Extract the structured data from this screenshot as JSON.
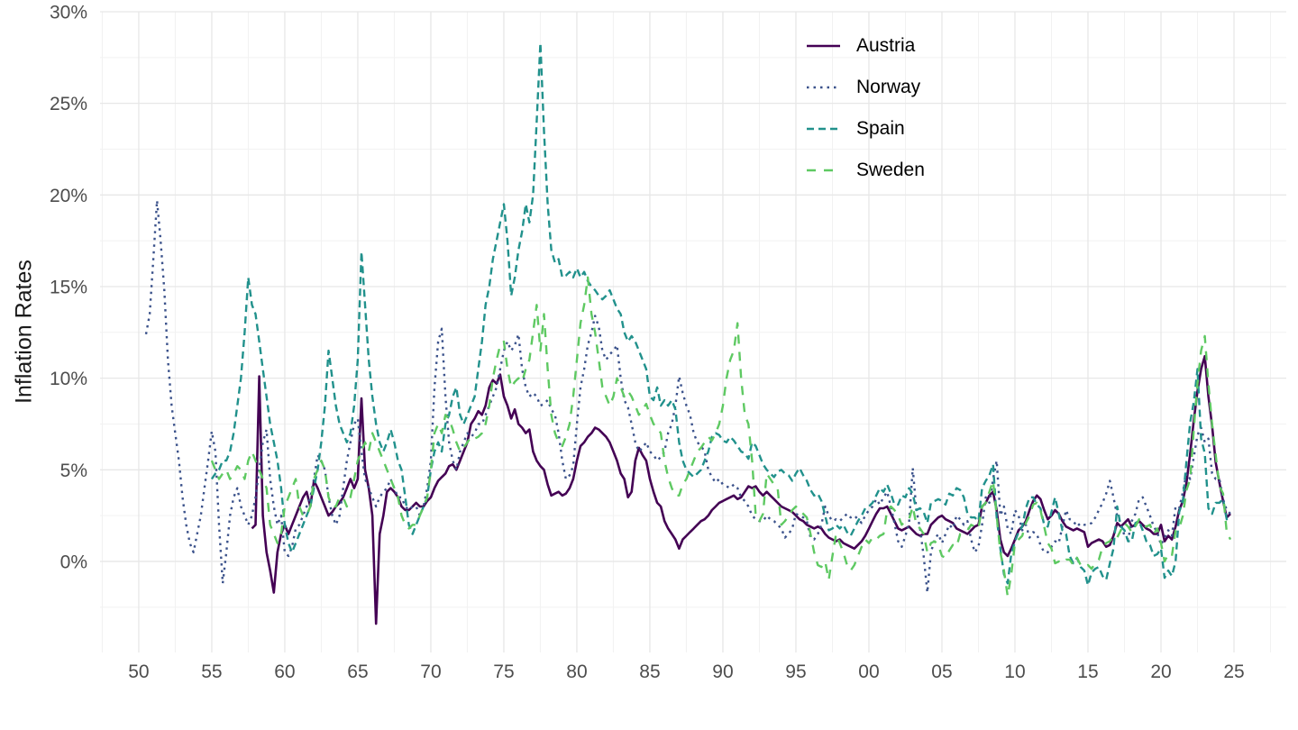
{
  "chart_data": {
    "type": "line",
    "title": "",
    "xlabel": "",
    "ylabel": "Inflation Rates",
    "x_range": [
      1947.35,
      2028.58
    ],
    "y_range": [
      -4.97,
      30.0
    ],
    "grid": "on",
    "legend_position": "inside-top-right",
    "theme": {
      "background": "#ffffff",
      "grid_major": "#e7e7e7",
      "grid_minor": "#f2f2f2",
      "tick_text": "#4d4d4d",
      "axis_title_text": "#1a1a1a"
    },
    "x_ticks": [
      {
        "year": 1950,
        "label": "50"
      },
      {
        "year": 1955,
        "label": "55"
      },
      {
        "year": 1960,
        "label": "60"
      },
      {
        "year": 1965,
        "label": "65"
      },
      {
        "year": 1970,
        "label": "70"
      },
      {
        "year": 1975,
        "label": "75"
      },
      {
        "year": 1980,
        "label": "80"
      },
      {
        "year": 1985,
        "label": "85"
      },
      {
        "year": 1990,
        "label": "90"
      },
      {
        "year": 1995,
        "label": "95"
      },
      {
        "year": 2000,
        "label": "00"
      },
      {
        "year": 2005,
        "label": "05"
      },
      {
        "year": 2010,
        "label": "10"
      },
      {
        "year": 2015,
        "label": "15"
      },
      {
        "year": 2020,
        "label": "20"
      },
      {
        "year": 2025,
        "label": "25"
      }
    ],
    "y_ticks": [
      {
        "value": 0,
        "label": "0%"
      },
      {
        "value": 5,
        "label": "5%"
      },
      {
        "value": 10,
        "label": "10%"
      },
      {
        "value": 15,
        "label": "15%"
      },
      {
        "value": 20,
        "label": "20%"
      },
      {
        "value": 25,
        "label": "25%"
      },
      {
        "value": 30,
        "label": "30%"
      }
    ],
    "series": [
      {
        "name": "Austria",
        "color": "#440154",
        "linetype": "solid",
        "start": 1957.75,
        "step": 0.25,
        "values": [
          1.8,
          2.0,
          10.1,
          2.5,
          0.5,
          -0.5,
          -1.7,
          0.5,
          1.5,
          2.0,
          1.5,
          2.0,
          2.5,
          3.0,
          3.5,
          3.8,
          3.0,
          4.4,
          4.0,
          3.5,
          3.0,
          2.5,
          2.7,
          3.0,
          3.2,
          3.5,
          4.0,
          4.5,
          4.0,
          4.5,
          8.9,
          5.0,
          4.0,
          2.5,
          -3.4,
          1.5,
          2.5,
          3.8,
          4.0,
          3.8,
          3.5,
          3.0,
          2.8,
          2.8,
          3.0,
          3.2,
          3.0,
          3.0,
          3.3,
          3.5,
          4.0,
          4.4,
          4.6,
          4.8,
          5.2,
          5.3,
          5.0,
          5.5,
          6.0,
          6.5,
          7.5,
          7.8,
          8.2,
          8.0,
          8.5,
          9.5,
          9.9,
          9.7,
          10.2,
          9.0,
          8.5,
          7.8,
          8.3,
          7.5,
          7.3,
          7.0,
          7.2,
          6.0,
          5.5,
          5.2,
          5.0,
          4.2,
          3.6,
          3.7,
          3.8,
          3.6,
          3.7,
          4.0,
          4.5,
          5.5,
          6.3,
          6.5,
          6.8,
          7.0,
          7.3,
          7.2,
          7.0,
          6.8,
          6.5,
          6.0,
          5.5,
          4.8,
          4.5,
          3.5,
          3.8,
          5.5,
          6.2,
          5.8,
          5.5,
          4.5,
          3.8,
          3.2,
          3.0,
          2.2,
          1.8,
          1.5,
          1.2,
          0.7,
          1.2,
          1.4,
          1.6,
          1.8,
          2.0,
          2.2,
          2.3,
          2.5,
          2.8,
          3.0,
          3.2,
          3.3,
          3.4,
          3.5,
          3.6,
          3.4,
          3.5,
          3.8,
          4.1,
          4.0,
          4.1,
          3.8,
          3.6,
          3.8,
          3.6,
          3.4,
          3.2,
          3.0,
          2.9,
          2.8,
          2.7,
          2.5,
          2.3,
          2.2,
          2.0,
          1.9,
          1.8,
          1.9,
          1.8,
          1.5,
          1.3,
          1.2,
          1.1,
          1.2,
          1.0,
          0.9,
          0.8,
          0.7,
          0.9,
          1.1,
          1.4,
          1.8,
          2.2,
          2.6,
          2.9,
          2.9,
          3.0,
          2.6,
          2.2,
          1.8,
          1.7,
          1.8,
          1.9,
          1.7,
          1.5,
          1.4,
          1.5,
          1.5,
          2.0,
          2.2,
          2.4,
          2.5,
          2.3,
          2.2,
          2.1,
          1.8,
          1.7,
          1.6,
          1.5,
          1.7,
          1.9,
          2.0,
          3.0,
          3.2,
          3.6,
          3.8,
          2.8,
          1.2,
          0.5,
          0.3,
          0.7,
          1.2,
          1.7,
          1.9,
          2.2,
          2.8,
          3.3,
          3.6,
          3.4,
          2.8,
          2.3,
          2.5,
          2.8,
          2.6,
          2.2,
          1.9,
          1.8,
          1.7,
          1.8,
          1.7,
          1.6,
          0.8,
          1.0,
          1.1,
          1.2,
          1.1,
          0.8,
          0.9,
          1.4,
          2.1,
          1.9,
          2.1,
          2.3,
          1.9,
          2.0,
          2.2,
          2.0,
          1.8,
          1.7,
          1.5,
          1.5,
          2.0,
          1.1,
          1.4,
          1.2,
          1.9,
          2.8,
          3.3,
          4.3,
          5.9,
          7.7,
          9.3,
          10.5,
          11.2,
          9.0,
          7.4,
          5.4,
          4.3,
          3.3,
          2.4,
          2.6
        ]
      },
      {
        "name": "Norway",
        "color": "#3b528b",
        "linetype": "dotted",
        "start": 1950.5,
        "step": 0.25,
        "values": [
          12.4,
          13.5,
          16.5,
          19.7,
          17.5,
          14.8,
          11.0,
          8.5,
          7.0,
          5.5,
          3.5,
          2.0,
          1.0,
          0.5,
          1.5,
          2.5,
          4.0,
          5.5,
          7.1,
          6.0,
          2.0,
          -1.2,
          0.5,
          2.5,
          3.5,
          4.0,
          3.0,
          2.5,
          2.0,
          2.5,
          3.5,
          5.0,
          6.5,
          7.2,
          4.5,
          3.0,
          2.0,
          2.5,
          0.5,
          0.3,
          0.8,
          1.8,
          2.0,
          2.5,
          3.0,
          3.5,
          4.5,
          5.8,
          5.5,
          5.0,
          3.5,
          2.5,
          2.0,
          2.5,
          4.0,
          5.5,
          6.5,
          7.5,
          7.8,
          6.0,
          4.5,
          4.0,
          3.5,
          3.0,
          3.5,
          3.8,
          4.0,
          4.5,
          4.0,
          3.5,
          3.5,
          3.0,
          2.8,
          3.0,
          3.0,
          2.5,
          3.0,
          4.0,
          5.5,
          9.5,
          12.0,
          12.7,
          9.0,
          6.5,
          5.5,
          5.0,
          6.0,
          6.5,
          7.0,
          6.8,
          7.0,
          7.5,
          7.5,
          8.0,
          8.5,
          9.0,
          9.5,
          10.5,
          11.5,
          12.0,
          11.5,
          11.8,
          12.4,
          10.5,
          9.5,
          9.0,
          9.2,
          9.0,
          8.5,
          8.6,
          8.8,
          8.3,
          8.0,
          7.0,
          5.5,
          4.5,
          4.7,
          5.2,
          7.5,
          9.5,
          10.5,
          11.8,
          12.5,
          13.4,
          12.8,
          11.5,
          11.0,
          11.3,
          11.5,
          11.8,
          10.0,
          8.8,
          8.4,
          7.5,
          6.5,
          6.0,
          6.2,
          6.5,
          6.0,
          5.8,
          5.5,
          5.7,
          6.0,
          7.0,
          7.5,
          8.5,
          10.1,
          9.2,
          8.5,
          8.0,
          7.0,
          6.5,
          6.3,
          6.0,
          5.0,
          4.6,
          4.3,
          4.5,
          4.2,
          4.1,
          4.0,
          4.2,
          4.0,
          3.5,
          3.3,
          3.0,
          2.5,
          2.3,
          2.2,
          2.2,
          2.5,
          2.3,
          2.2,
          2.0,
          1.8,
          1.3,
          1.5,
          1.8,
          2.6,
          2.5,
          2.4,
          2.2,
          1.3,
          1.2,
          1.5,
          2.0,
          3.0,
          2.5,
          2.2,
          2.3,
          2.2,
          2.4,
          2.6,
          2.4,
          2.5,
          2.3,
          2.1,
          2.5,
          2.8,
          3.0,
          3.4,
          3.1,
          3.5,
          3.8,
          3.0,
          2.1,
          1.1,
          0.8,
          1.4,
          2.1,
          5.1,
          2.8,
          1.8,
          0.3,
          -1.7,
          0.5,
          1.2,
          1.5,
          1.0,
          1.5,
          2.0,
          1.8,
          2.5,
          2.3,
          2.0,
          2.2,
          1.2,
          0.5,
          0.8,
          2.0,
          3.5,
          3.2,
          4.5,
          5.5,
          2.5,
          3.0,
          1.8,
          1.5,
          2.8,
          2.5,
          1.7,
          2.0,
          1.3,
          1.6,
          1.5,
          0.9,
          0.5,
          0.5,
          0.8,
          1.1,
          1.0,
          1.9,
          2.8,
          2.3,
          2.2,
          1.9,
          2.1,
          2.0,
          2.0,
          2.1,
          2.4,
          2.8,
          3.2,
          3.7,
          4.4,
          3.5,
          2.5,
          2.1,
          1.4,
          1.2,
          2.2,
          2.6,
          3.4,
          3.5,
          3.0,
          2.5,
          1.9,
          1.6,
          0.9,
          1.3,
          1.7,
          1.4,
          3.0,
          2.9,
          3.8,
          4.8,
          4.5,
          5.7,
          6.9,
          7.3,
          6.5,
          6.7,
          4.8,
          4.5,
          4.5,
          3.4,
          2.8,
          2.6
        ]
      },
      {
        "name": "Spain",
        "color": "#21918c",
        "linetype": "dashed",
        "start": 1955.0,
        "step": 0.25,
        "values": [
          4.5,
          4.8,
          5.0,
          5.5,
          5.5,
          6.0,
          7.0,
          8.5,
          10.0,
          12.5,
          15.5,
          14.0,
          13.5,
          12.0,
          10.5,
          9.0,
          7.5,
          6.5,
          5.5,
          4.0,
          2.0,
          1.0,
          0.5,
          1.0,
          1.5,
          2.0,
          2.5,
          3.0,
          4.0,
          5.0,
          6.5,
          8.5,
          11.5,
          10.0,
          8.5,
          7.5,
          7.0,
          6.5,
          7.0,
          8.5,
          11.0,
          16.9,
          14.0,
          11.0,
          9.0,
          7.5,
          6.5,
          6.0,
          6.5,
          7.2,
          6.5,
          5.5,
          5.0,
          3.5,
          2.0,
          1.5,
          2.0,
          2.5,
          3.0,
          3.5,
          5.0,
          6.0,
          6.5,
          6.0,
          7.5,
          8.0,
          9.0,
          9.5,
          8.0,
          7.5,
          8.0,
          8.5,
          9.0,
          10.5,
          12.0,
          14.0,
          15.0,
          16.5,
          17.5,
          18.5,
          19.5,
          17.5,
          14.5,
          15.5,
          17.0,
          18.0,
          19.5,
          18.5,
          20.0,
          24.0,
          28.3,
          23.5,
          19.5,
          17.0,
          16.3,
          16.5,
          15.5,
          15.6,
          15.8,
          15.5,
          16.0,
          15.5,
          15.8,
          15.3,
          15.0,
          14.8,
          14.5,
          14.3,
          14.5,
          14.8,
          14.3,
          13.8,
          13.5,
          12.5,
          12.0,
          12.3,
          12.0,
          11.5,
          11.0,
          10.5,
          9.0,
          8.8,
          9.5,
          8.5,
          8.8,
          8.5,
          8.8,
          8.3,
          6.5,
          5.5,
          5.0,
          4.8,
          4.6,
          4.8,
          5.0,
          5.5,
          6.0,
          6.8,
          7.0,
          6.9,
          6.6,
          6.5,
          6.8,
          6.6,
          6.3,
          6.0,
          5.9,
          5.6,
          6.5,
          6.3,
          5.8,
          5.3,
          5.0,
          4.8,
          4.6,
          4.9,
          5.0,
          4.8,
          4.7,
          4.4,
          4.8,
          5.1,
          4.7,
          4.4,
          3.9,
          3.6,
          3.7,
          3.3,
          2.5,
          1.7,
          1.8,
          2.0,
          1.8,
          2.0,
          1.6,
          1.4,
          1.8,
          2.2,
          2.5,
          2.9,
          3.0,
          3.2,
          3.6,
          4.0,
          3.8,
          4.2,
          3.7,
          3.1,
          3.1,
          3.6,
          3.5,
          4.0,
          3.7,
          2.8,
          2.9,
          2.7,
          2.1,
          3.2,
          3.3,
          3.4,
          3.3,
          3.1,
          3.7,
          3.6,
          4.0,
          3.9,
          3.5,
          2.6,
          2.4,
          2.4,
          2.2,
          4.0,
          4.4,
          4.7,
          5.3,
          2.4,
          0.7,
          -0.7,
          -1.2,
          0.4,
          1.1,
          1.6,
          1.9,
          2.9,
          3.5,
          3.5,
          3.1,
          2.9,
          2.0,
          1.9,
          2.7,
          3.5,
          2.6,
          1.7,
          1.5,
          0.3,
          -0.1,
          0.2,
          -0.3,
          -0.5,
          -1.3,
          -0.6,
          -0.4,
          -0.3,
          -0.8,
          -1.0,
          -0.1,
          0.7,
          3.0,
          1.9,
          1.7,
          1.1,
          1.1,
          2.1,
          2.2,
          1.7,
          1.1,
          0.9,
          0.3,
          0.4,
          0.7,
          -0.9,
          -0.5,
          -0.8,
          0.0,
          2.7,
          3.3,
          5.5,
          7.6,
          8.7,
          10.5,
          6.7,
          5.9,
          2.9,
          2.6,
          3.2,
          3.2,
          3.4,
          2.3,
          2.4
        ]
      },
      {
        "name": "Sweden",
        "color": "#5ec962",
        "linetype": "longdash",
        "start": 1955.0,
        "step": 0.25,
        "values": [
          5.5,
          5.0,
          4.5,
          4.8,
          5.0,
          4.5,
          4.8,
          5.2,
          5.0,
          4.5,
          5.5,
          6.0,
          5.5,
          5.0,
          4.5,
          4.0,
          2.0,
          1.5,
          1.0,
          1.5,
          3.0,
          3.5,
          4.0,
          4.5,
          3.0,
          2.5,
          2.5,
          3.0,
          4.5,
          5.0,
          5.5,
          5.0,
          3.5,
          3.0,
          3.0,
          3.5,
          3.5,
          3.0,
          3.5,
          4.5,
          5.5,
          6.0,
          6.5,
          6.0,
          7.0,
          6.5,
          6.0,
          5.5,
          5.0,
          4.5,
          4.0,
          3.5,
          2.5,
          2.0,
          1.8,
          2.0,
          2.0,
          2.5,
          3.0,
          3.5,
          5.0,
          7.0,
          7.5,
          7.0,
          8.0,
          7.8,
          7.2,
          6.5,
          6.0,
          6.2,
          6.5,
          6.8,
          6.7,
          6.8,
          7.0,
          7.5,
          8.5,
          10.0,
          11.0,
          11.8,
          12.0,
          10.5,
          9.5,
          9.8,
          10.0,
          9.8,
          10.5,
          11.0,
          12.5,
          14.0,
          11.5,
          13.5,
          10.5,
          8.0,
          7.0,
          6.5,
          6.3,
          6.8,
          7.5,
          9.0,
          11.0,
          13.0,
          14.0,
          15.5,
          13.5,
          12.5,
          11.0,
          9.5,
          9.0,
          8.5,
          9.0,
          10.0,
          9.5,
          9.0,
          9.3,
          9.0,
          8.5,
          8.0,
          8.3,
          8.6,
          8.0,
          7.5,
          7.3,
          7.0,
          5.5,
          4.6,
          4.0,
          3.6,
          3.6,
          4.2,
          4.5,
          5.0,
          5.5,
          6.0,
          6.2,
          6.5,
          6.8,
          6.6,
          7.0,
          7.5,
          8.5,
          10.0,
          11.0,
          11.5,
          13.0,
          10.0,
          8.0,
          7.5,
          5.5,
          2.5,
          2.2,
          2.6,
          4.8,
          4.5,
          4.2,
          4.0,
          2.0,
          2.2,
          2.5,
          2.8,
          3.0,
          2.8,
          2.6,
          2.4,
          1.5,
          0.5,
          -0.2,
          -0.3,
          0.0,
          -1.0,
          0.3,
          1.5,
          1.0,
          0.5,
          -0.2,
          -0.5,
          -0.2,
          0.3,
          0.8,
          1.2,
          1.0,
          1.3,
          1.2,
          1.4,
          1.5,
          2.8,
          3.0,
          2.8,
          2.5,
          2.0,
          2.2,
          2.3,
          3.0,
          2.0,
          1.8,
          1.5,
          0.5,
          1.0,
          1.1,
          0.9,
          0.3,
          0.2,
          0.6,
          0.9,
          0.8,
          1.5,
          1.6,
          1.7,
          2.0,
          1.9,
          1.8,
          3.0,
          3.2,
          3.8,
          4.4,
          2.5,
          0.5,
          -0.5,
          -1.9,
          -0.7,
          1.0,
          1.2,
          1.4,
          2.1,
          2.5,
          3.1,
          3.2,
          2.8,
          1.9,
          1.0,
          0.7,
          -0.1,
          0.0,
          -0.1,
          0.1,
          0.1,
          -0.2,
          0.2,
          -0.2,
          -0.3,
          -0.2,
          -0.4,
          -0.1,
          0.1,
          0.8,
          1.0,
          1.1,
          1.4,
          1.3,
          1.7,
          2.1,
          1.9,
          1.6,
          1.9,
          2.3,
          2.0,
          1.9,
          2.0,
          1.5,
          1.8,
          1.0,
          0.0,
          0.4,
          0.3,
          1.7,
          1.8,
          2.5,
          3.9,
          4.5,
          7.2,
          9.7,
          11.5,
          12.3,
          9.7,
          7.5,
          5.8,
          4.1,
          3.7,
          1.6,
          1.2
        ]
      }
    ]
  }
}
